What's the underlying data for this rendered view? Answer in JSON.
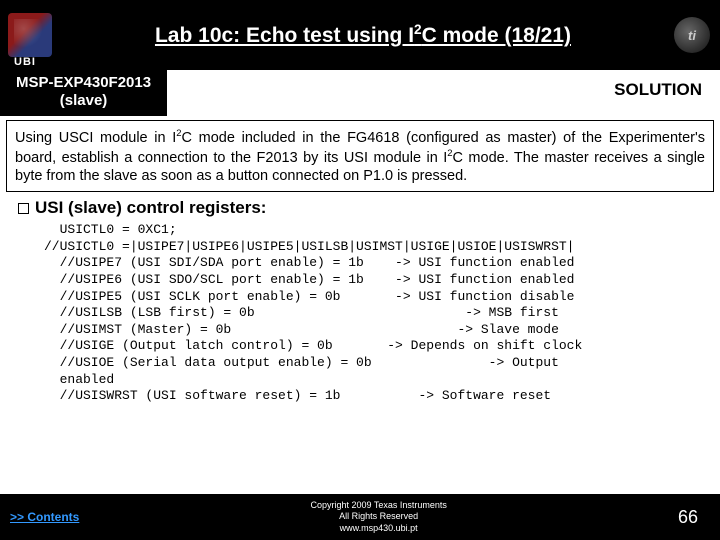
{
  "header": {
    "ubi": "UBI",
    "title_pre": "Lab 10c: Echo test using I",
    "title_sup": "2",
    "title_post": "C mode (18/21)"
  },
  "subhead": {
    "device_l1": "MSP-EXP430F2013",
    "device_l2": "(slave)",
    "solution": "SOLUTION"
  },
  "description": {
    "p1_a": "Using USCI module in I",
    "p1_sup": "2",
    "p1_b": "C mode included in the FG4618 (configured as master) of the Experimenter's board, establish a connection to the F2013 by its USI module in I",
    "p1_sup2": "2",
    "p1_c": "C mode. The master receives a single byte from the slave as soon as a button connected on P1.0 is pressed."
  },
  "section": {
    "heading": "USI (slave) control registers:",
    "code": "  USICTL0 = 0XC1;\n//USICTL0 =|USIPE7|USIPE6|USIPE5|USILSB|USIMST|USIGE|USIOE|USISWRST|\n  //USIPE7 (USI SDI/SDA port enable) = 1b    -> USI function enabled\n  //USIPE6 (USI SDO/SCL port enable) = 1b    -> USI function enabled\n  //USIPE5 (USI SCLK port enable) = 0b       -> USI function disable\n  //USILSB (LSB first) = 0b                           -> MSB first\n  //USIMST (Master) = 0b                             -> Slave mode\n  //USIGE (Output latch control) = 0b       -> Depends on shift clock\n  //USIOE (Serial data output enable) = 0b               -> Output\n  enabled\n  //USISWRST (USI software reset) = 1b          -> Software reset"
  },
  "footer": {
    "contents": ">> Contents",
    "copy_l1": "Copyright 2009 Texas Instruments",
    "copy_l2": "All Rights Reserved",
    "copy_l3": "www.msp430.ubi.pt",
    "page": "66"
  },
  "colors": {
    "bg": "#ffffff",
    "header_bg": "#000000",
    "link": "#3399ff"
  }
}
